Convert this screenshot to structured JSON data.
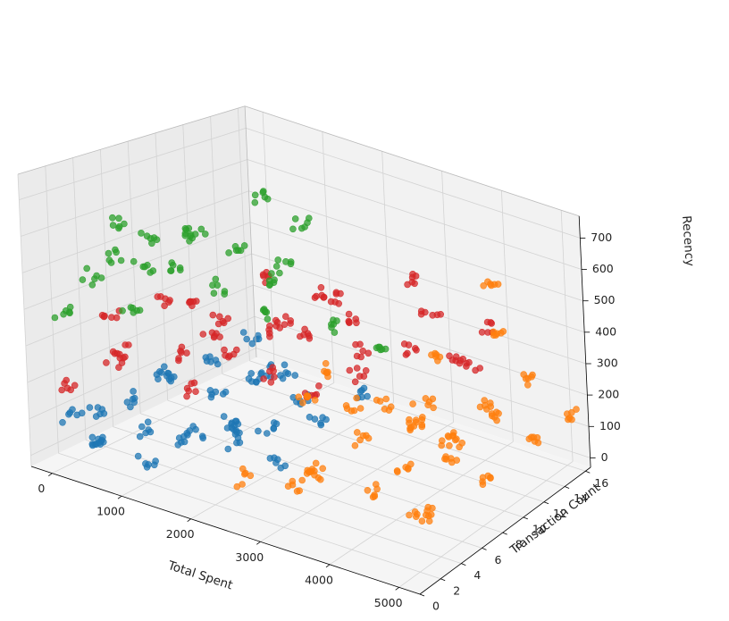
{
  "chart_data": {
    "type": "scatter",
    "projection": "3d",
    "xlabel": "Total Spent",
    "ylabel": "Transaction Count",
    "zlabel": "Recency",
    "xlim": [
      -300,
      5300
    ],
    "ylim": [
      0,
      16.5
    ],
    "zlim": [
      -30,
      770
    ],
    "xticks": [
      0,
      1000,
      2000,
      3000,
      4000,
      5000
    ],
    "yticks": [
      0,
      2,
      4,
      6,
      8,
      10,
      12,
      14,
      16
    ],
    "zticks": [
      0,
      100,
      200,
      300,
      400,
      500,
      600,
      700
    ],
    "grid": true,
    "legend": "none",
    "colors": {
      "cluster_blue": "#1f77b4",
      "cluster_orange": "#ff7f0e",
      "cluster_green": "#2ca02c",
      "cluster_red": "#d62728"
    },
    "series": [
      {
        "color": "#1f77b4",
        "points": [
          [
            100,
            1,
            120
          ],
          [
            300,
            2,
            50
          ],
          [
            500,
            1,
            150
          ],
          [
            800,
            3,
            90
          ],
          [
            1000,
            2,
            30
          ],
          [
            1200,
            4,
            60
          ],
          [
            1500,
            3,
            120
          ],
          [
            1800,
            5,
            80
          ],
          [
            2000,
            4,
            150
          ],
          [
            200,
            5,
            100
          ],
          [
            600,
            6,
            180
          ],
          [
            1100,
            7,
            130
          ],
          [
            1700,
            8,
            60
          ],
          [
            2200,
            6,
            20
          ],
          [
            50,
            8,
            110
          ],
          [
            400,
            10,
            140
          ],
          [
            900,
            11,
            90
          ],
          [
            1400,
            12,
            40
          ],
          [
            250,
            14,
            120
          ],
          [
            700,
            13,
            60
          ],
          [
            1600,
            10,
            170
          ],
          [
            2300,
            9,
            100
          ],
          [
            130,
            3,
            10
          ],
          [
            950,
            9,
            10
          ],
          [
            2400,
            12,
            130
          ]
        ]
      },
      {
        "color": "#ff7f0e",
        "points": [
          [
            2600,
            1,
            100
          ],
          [
            3000,
            3,
            60
          ],
          [
            3500,
            2,
            160
          ],
          [
            4000,
            4,
            90
          ],
          [
            4500,
            5,
            40
          ],
          [
            5000,
            3,
            120
          ],
          [
            2800,
            6,
            30
          ],
          [
            3300,
            7,
            140
          ],
          [
            3800,
            8,
            70
          ],
          [
            4300,
            9,
            110
          ],
          [
            4800,
            10,
            50
          ],
          [
            2700,
            10,
            150
          ],
          [
            3200,
            12,
            80
          ],
          [
            3700,
            13,
            30
          ],
          [
            4200,
            14,
            120
          ],
          [
            4700,
            15,
            60
          ],
          [
            5100,
            16,
            130
          ],
          [
            2900,
            14,
            20
          ],
          [
            3600,
            11,
            180
          ],
          [
            4400,
            12,
            200
          ],
          [
            4900,
            6,
            250
          ],
          [
            3100,
            4,
            300
          ],
          [
            4100,
            15,
            350
          ],
          [
            5000,
            13,
            310
          ],
          [
            4600,
            7,
            460
          ],
          [
            3900,
            16,
            480
          ],
          [
            3400,
            9,
            210
          ],
          [
            2650,
            8,
            280
          ]
        ]
      },
      {
        "color": "#2ca02c",
        "points": [
          [
            100,
            1,
            400
          ],
          [
            300,
            2,
            500
          ],
          [
            500,
            3,
            550
          ],
          [
            700,
            4,
            520
          ],
          [
            900,
            2,
            450
          ],
          [
            200,
            5,
            600
          ],
          [
            400,
            6,
            560
          ],
          [
            600,
            7,
            480
          ],
          [
            1000,
            8,
            420
          ],
          [
            150,
            10,
            500
          ],
          [
            500,
            12,
            450
          ],
          [
            800,
            14,
            380
          ],
          [
            1200,
            11,
            400
          ],
          [
            1500,
            9,
            360
          ],
          [
            2000,
            12,
            300
          ],
          [
            2600,
            13,
            250
          ],
          [
            250,
            15,
            540
          ],
          [
            700,
            16,
            470
          ],
          [
            1300,
            5,
            650
          ]
        ]
      },
      {
        "color": "#d62728",
        "points": [
          [
            100,
            1,
            200
          ],
          [
            400,
            3,
            250
          ],
          [
            700,
            2,
            320
          ],
          [
            1000,
            5,
            280
          ],
          [
            1300,
            4,
            220
          ],
          [
            1600,
            6,
            300
          ],
          [
            2000,
            7,
            250
          ],
          [
            2400,
            8,
            200
          ],
          [
            200,
            8,
            330
          ],
          [
            600,
            10,
            270
          ],
          [
            1000,
            12,
            230
          ],
          [
            1400,
            14,
            320
          ],
          [
            1800,
            11,
            280
          ],
          [
            2200,
            13,
            220
          ],
          [
            2800,
            10,
            240
          ],
          [
            3200,
            12,
            300
          ],
          [
            3600,
            14,
            260
          ],
          [
            3000,
            15,
            350
          ],
          [
            2500,
            16,
            400
          ],
          [
            1900,
            3,
            420
          ],
          [
            800,
            7,
            380
          ],
          [
            2600,
            5,
            470
          ],
          [
            3500,
            6,
            520
          ],
          [
            4000,
            13,
            290
          ],
          [
            3800,
            16,
            330
          ],
          [
            300,
            15,
            300
          ],
          [
            1200,
            16,
            260
          ],
          [
            150,
            4,
            350
          ]
        ]
      }
    ]
  }
}
